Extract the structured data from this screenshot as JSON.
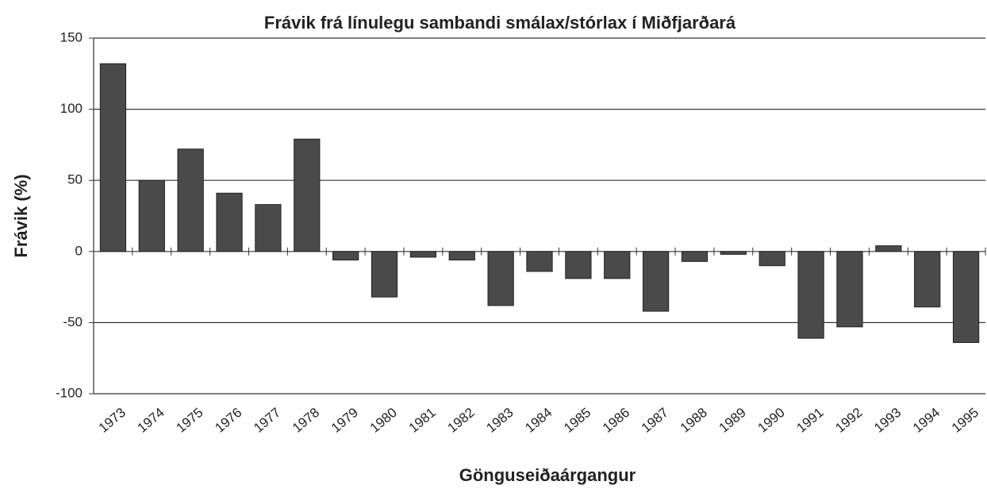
{
  "chart_data": {
    "type": "bar",
    "title": "Frávik frá línulegu sambandi smálax/stórlax í Miðfjarðará",
    "y_label": "Frávik (%)",
    "x_label": "Gönguseiðaárgangur",
    "categories": [
      "1973",
      "1974",
      "1975",
      "1976",
      "1977",
      "1978",
      "1979",
      "1980",
      "1981",
      "1982",
      "1983",
      "1984",
      "1985",
      "1986",
      "1987",
      "1988",
      "1989",
      "1990",
      "1991",
      "1992",
      "1993",
      "1994",
      "1995"
    ],
    "values": [
      132,
      50,
      72,
      41,
      33,
      79,
      -6,
      -32,
      -4,
      -6,
      -38,
      -14,
      -19,
      -19,
      -42,
      -7,
      -2,
      -10,
      -61,
      -53,
      4,
      -39,
      -64
    ],
    "color": "#4a4a4a",
    "ylim": [
      -100,
      150
    ],
    "yticks": [
      -100,
      -50,
      0,
      50,
      100,
      150
    ],
    "grid": true
  }
}
